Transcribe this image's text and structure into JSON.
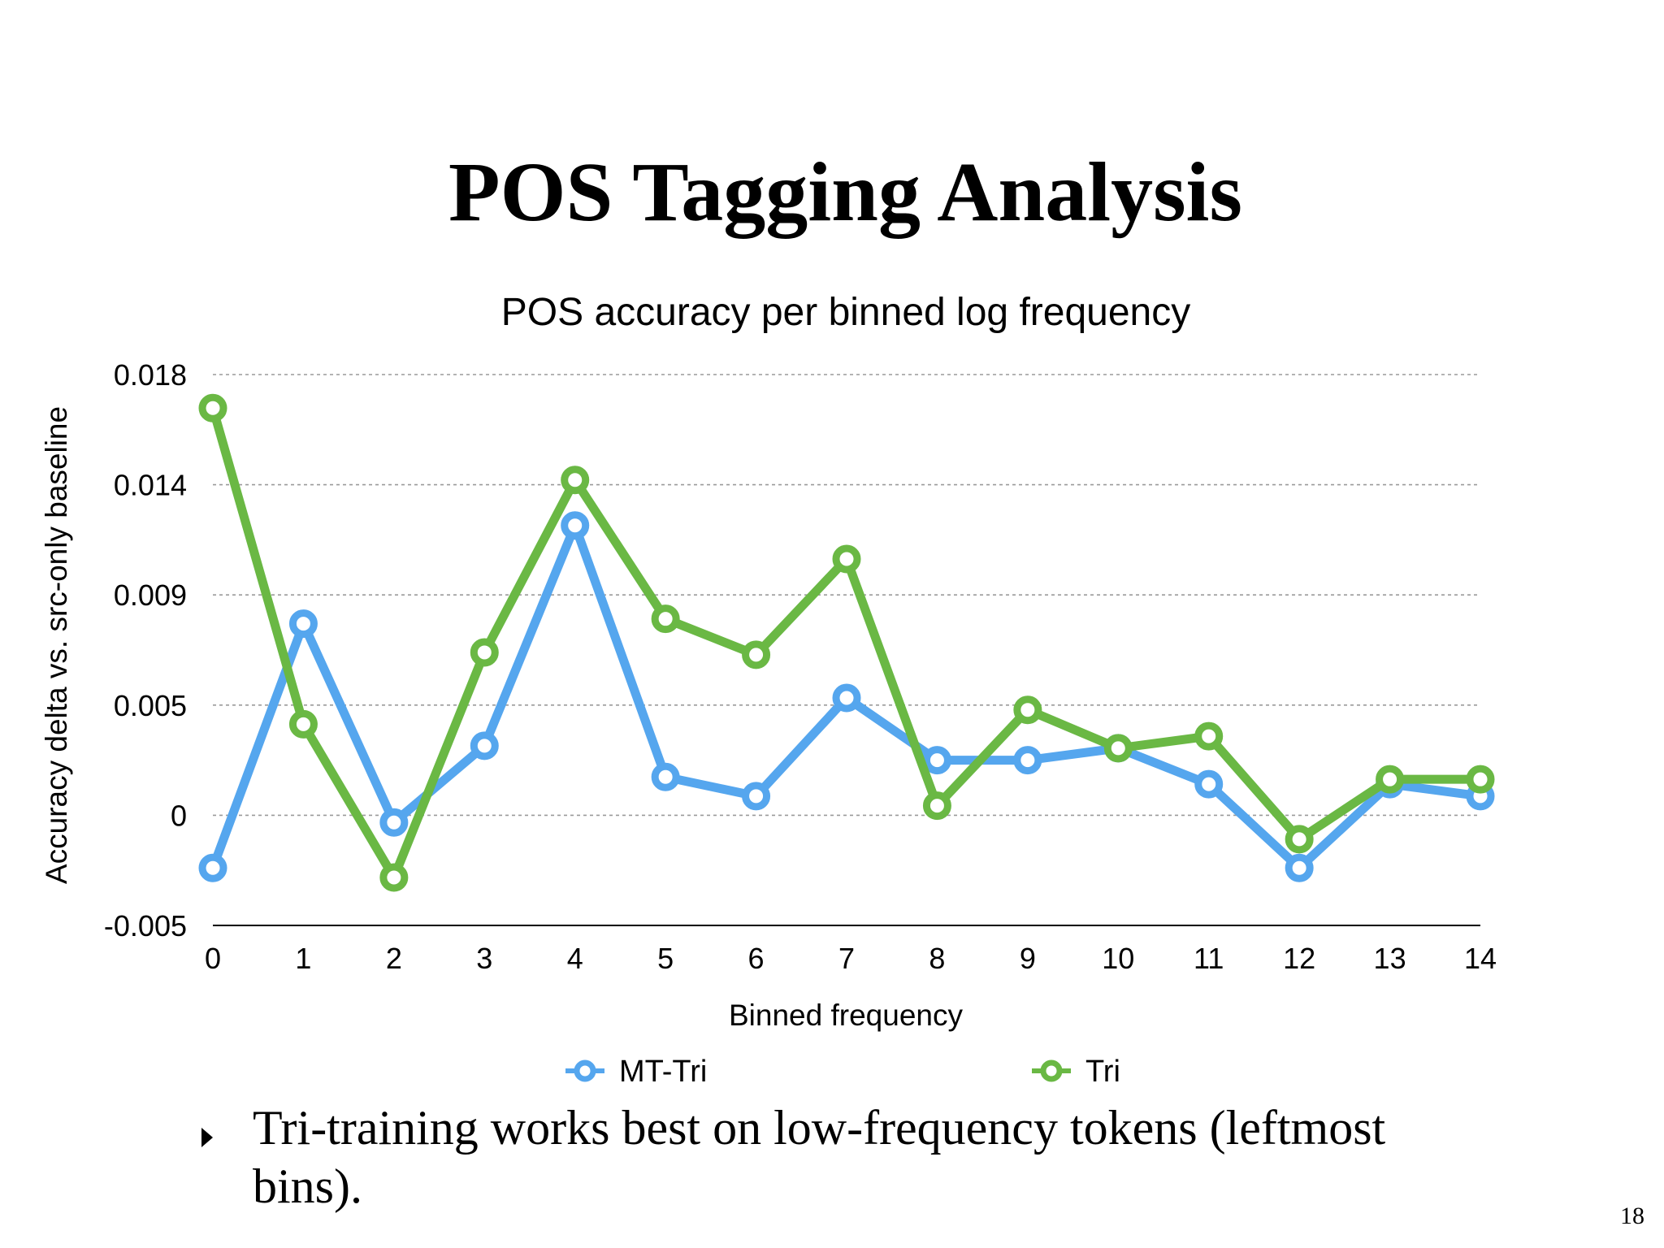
{
  "slide": {
    "title": "POS Tagging Analysis",
    "bullet": "Tri-training works best on low-frequency tokens (leftmost bins).",
    "page_number": "18"
  },
  "chart_data": {
    "type": "line",
    "title": "POS accuracy per binned log frequency",
    "xlabel": "Binned frequency",
    "ylabel": "Accuracy delta vs. src-only baseline",
    "categories": [
      "0",
      "1",
      "2",
      "3",
      "4",
      "5",
      "6",
      "7",
      "8",
      "9",
      "10",
      "11",
      "12",
      "13",
      "14"
    ],
    "y_ticks": [
      {
        "value": 0.018,
        "label": "0.018"
      },
      {
        "value": 0.014,
        "label": "0.014"
      },
      {
        "value": 0.009,
        "label": "0.009"
      },
      {
        "value": 0.005,
        "label": "0.005"
      },
      {
        "value": 0,
        "label": "0"
      },
      {
        "value": -0.005,
        "label": "-0.005"
      }
    ],
    "ylim": [
      -0.005,
      0.018
    ],
    "grid": true,
    "legend": "bottom",
    "series": [
      {
        "name": "MT-Tri",
        "color": "#55a6ee",
        "values": [
          -0.0026,
          0.0076,
          -0.0007,
          0.0025,
          0.0117,
          0.0012,
          0.0004,
          0.0045,
          0.0019,
          0.0019,
          0.0024,
          0.0009,
          -0.0026,
          0.0009,
          0.0004
        ]
      },
      {
        "name": "Tri",
        "color": "#6ab844",
        "values": [
          0.0166,
          0.0034,
          -0.003,
          0.0064,
          0.0136,
          0.0078,
          0.0063,
          0.0103,
          0.0,
          0.004,
          0.0024,
          0.0029,
          -0.0014,
          0.0011,
          0.0011
        ]
      }
    ]
  }
}
